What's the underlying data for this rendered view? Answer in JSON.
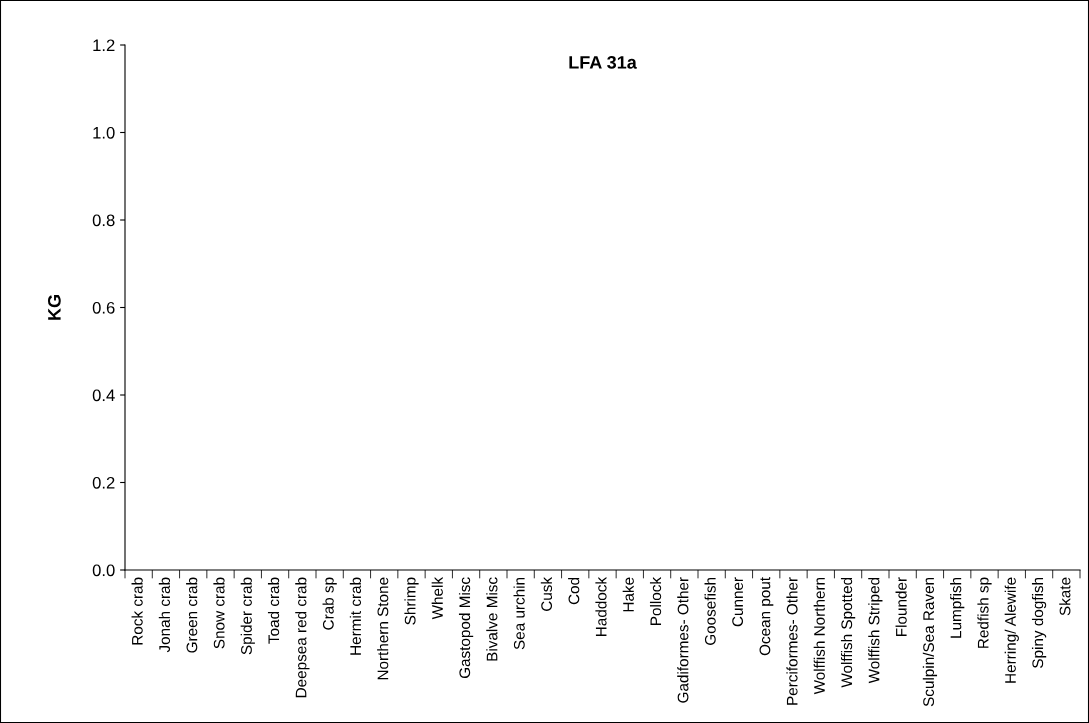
{
  "chart_data": {
    "type": "bar",
    "title": "LFA 31a",
    "ylabel": "KG",
    "categories": [
      "Rock crab",
      "Jonah crab",
      "Green crab",
      "Snow crab",
      "Spider crab",
      "Toad crab",
      "Deepsea red crab",
      "Crab sp",
      "Hermit crab",
      "Northern Stone",
      "Shrimp",
      "Whelk",
      "Gastopod Misc",
      "Bivalve Misc",
      "Sea urchin",
      "Cusk",
      "Cod",
      "Haddock",
      "Hake",
      "Pollock",
      "Gadiformes- Other",
      "Goosefish",
      "Cunner",
      "Ocean pout",
      "Perciformes- Other",
      "Wolffish Northern",
      "Wolffish Spotted",
      "Wolffish Striped",
      "Flounder",
      "Sculpin/Sea Raven",
      "Lumpfish",
      "Redfish sp",
      "Herring/ Alewife",
      "Spiny dogfish",
      "Skate"
    ],
    "values": [
      0,
      0,
      0,
      0,
      0,
      0,
      0,
      0,
      0,
      0,
      0,
      0,
      0,
      0,
      0,
      0,
      0,
      0,
      0,
      0,
      0,
      0,
      0,
      0,
      0,
      0,
      0,
      0,
      0,
      0,
      0,
      0,
      0,
      0,
      0
    ],
    "ylim": [
      0,
      1.2
    ],
    "yticks": [
      {
        "value": 0,
        "label": "0.0"
      },
      {
        "value": 0.2,
        "label": "0.2"
      },
      {
        "value": 0.4,
        "label": "0.4"
      },
      {
        "value": 0.6,
        "label": "0.6"
      },
      {
        "value": 0.8,
        "label": "0.8"
      },
      {
        "value": 1.0,
        "label": "1.0"
      },
      {
        "value": 1.2,
        "label": "1.2"
      }
    ],
    "grid": false
  }
}
